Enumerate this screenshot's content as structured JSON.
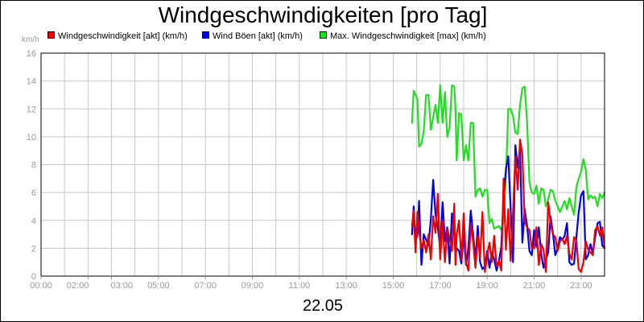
{
  "chart_data": {
    "type": "line",
    "title": "Windgeschwindigkeiten [pro Tag]",
    "date_label": "22.05",
    "unit_label": "km/h",
    "ylim": [
      0,
      16
    ],
    "y_ticks": [
      0,
      2,
      4,
      6,
      8,
      10,
      12,
      14,
      16
    ],
    "xlim": [
      0,
      24
    ],
    "x_ticks": [
      {
        "x": 0,
        "label": "00:00"
      },
      {
        "x": 2,
        "label": "02:00"
      },
      {
        "x": 3,
        "label": "03:00"
      },
      {
        "x": 5,
        "label": "05:00"
      },
      {
        "x": 7,
        "label": "07:00"
      },
      {
        "x": 9,
        "label": "09:00"
      },
      {
        "x": 11,
        "label": "11:00"
      },
      {
        "x": 13,
        "label": "13:00"
      },
      {
        "x": 15,
        "label": "15:00"
      },
      {
        "x": 17,
        "label": "17:00"
      },
      {
        "x": 19,
        "label": "19:00"
      },
      {
        "x": 21,
        "label": "21:00"
      },
      {
        "x": 23,
        "label": "23:00"
      }
    ],
    "x_grid": [
      0,
      1,
      2,
      3,
      4,
      5,
      6,
      7,
      8,
      9,
      10,
      11,
      12,
      13,
      14,
      15,
      16,
      17,
      18,
      19,
      20,
      21,
      22,
      23,
      24
    ],
    "grid": true,
    "legend_position": "top",
    "series": [
      {
        "name": "Max. Windgeschwindigkeit [max] (km/h)",
        "color": "#22dd22",
        "x": [
          15.8,
          15.87,
          15.95,
          16.03,
          16.1,
          16.2,
          16.3,
          16.4,
          16.5,
          16.6,
          16.7,
          16.8,
          16.9,
          17.0,
          17.1,
          17.2,
          17.3,
          17.4,
          17.5,
          17.6,
          17.65,
          17.7,
          17.8,
          17.9,
          18.0,
          18.1,
          18.2,
          18.3,
          18.4,
          18.5,
          18.6,
          18.7,
          18.8,
          18.9,
          19.0,
          19.1,
          19.2,
          19.3,
          19.4,
          19.5,
          19.6,
          19.7,
          19.8,
          19.9,
          20.0,
          20.1,
          20.2,
          20.3,
          20.4,
          20.5,
          20.6,
          20.7,
          20.8,
          20.9,
          21.0,
          21.1,
          21.2,
          21.3,
          21.4,
          21.5,
          21.6,
          21.7,
          21.8,
          21.9,
          22.0,
          22.1,
          22.2,
          22.3,
          22.4,
          22.5,
          22.6,
          22.7,
          22.8,
          22.9,
          23.0,
          23.1,
          23.2,
          23.3,
          23.4,
          23.5,
          23.6,
          23.7,
          23.8,
          23.9,
          24.0
        ],
        "values": [
          11.0,
          13.3,
          13.0,
          12.7,
          9.3,
          9.5,
          10.4,
          13.0,
          13.0,
          10.5,
          11.4,
          12.3,
          11.0,
          13.7,
          11.0,
          13.2,
          10.0,
          10.7,
          13.7,
          13.6,
          12.0,
          8.3,
          11.7,
          11.6,
          8.3,
          9.4,
          8.3,
          11.0,
          11.0,
          5.7,
          6.2,
          6.3,
          5.7,
          6.2,
          6.2,
          3.8,
          4.1,
          3.4,
          3.5,
          3.6,
          3.3,
          4.0,
          7.2,
          12.0,
          12.0,
          11.5,
          10.3,
          10.2,
          12.3,
          13.5,
          13.6,
          11.0,
          6.7,
          6.0,
          5.9,
          6.5,
          5.2,
          6.3,
          6.2,
          5.0,
          5.5,
          6.2,
          6.1,
          5.4,
          5.0,
          4.6,
          5.0,
          5.4,
          4.8,
          5.6,
          5.0,
          4.4,
          6.4,
          7.0,
          7.5,
          8.4,
          7.6,
          5.5,
          5.8,
          5.6,
          5.7,
          5.0,
          5.9,
          5.6,
          6.0
        ]
      },
      {
        "name": "Wind Böen [akt] (km/h)",
        "color": "#0000ee",
        "x": [
          15.8,
          15.87,
          15.95,
          16.03,
          16.1,
          16.2,
          16.3,
          16.4,
          16.5,
          16.6,
          16.7,
          16.8,
          16.9,
          17.0,
          17.1,
          17.2,
          17.3,
          17.4,
          17.5,
          17.6,
          17.65,
          17.7,
          17.8,
          17.9,
          18.0,
          18.1,
          18.2,
          18.3,
          18.4,
          18.5,
          18.6,
          18.7,
          18.8,
          18.9,
          19.0,
          19.1,
          19.2,
          19.3,
          19.4,
          19.5,
          19.6,
          19.7,
          19.8,
          19.9,
          20.0,
          20.1,
          20.2,
          20.3,
          20.4,
          20.5,
          20.6,
          20.7,
          20.8,
          20.9,
          21.0,
          21.1,
          21.2,
          21.3,
          21.4,
          21.5,
          21.6,
          21.7,
          21.8,
          21.9,
          22.0,
          22.1,
          22.2,
          22.3,
          22.4,
          22.5,
          22.6,
          22.7,
          22.8,
          22.9,
          23.0,
          23.1,
          23.2,
          23.3,
          23.4,
          23.5,
          23.6,
          23.7,
          23.8,
          23.9,
          24.0
        ],
        "values": [
          3.0,
          5.0,
          2.5,
          3.0,
          5.4,
          0.8,
          3.0,
          2.6,
          2.2,
          4.1,
          6.9,
          4.4,
          3.5,
          2.0,
          5.3,
          2.5,
          3.5,
          0.9,
          4.5,
          3.5,
          1.5,
          2.0,
          1.8,
          0.9,
          3.1,
          0.8,
          2.0,
          4.7,
          3.0,
          1.2,
          3.6,
          1.0,
          0.5,
          0.7,
          1.8,
          0.6,
          1.7,
          1.2,
          0.4,
          1.1,
          2.1,
          5.7,
          7.7,
          8.6,
          4.8,
          1.0,
          9.4,
          7.8,
          9.2,
          2.4,
          4.8,
          3.6,
          1.8,
          1.5,
          3.3,
          2.1,
          3.5,
          1.6,
          0.6,
          1.2,
          1.7,
          4.3,
          3.1,
          1.5,
          2.0,
          2.8,
          2.6,
          2.9,
          3.8,
          1.0,
          0.8,
          0.9,
          2.8,
          4.6,
          5.8,
          6.1,
          1.2,
          1.5,
          2.3,
          1.6,
          2.8,
          3.8,
          3.9,
          2.2,
          2.0
        ]
      },
      {
        "name": "Windgeschwindigkeit [akt] (km/h)",
        "color": "#ee0000",
        "x": [
          15.8,
          15.87,
          15.95,
          16.03,
          16.1,
          16.2,
          16.3,
          16.4,
          16.5,
          16.6,
          16.7,
          16.8,
          16.9,
          17.0,
          17.1,
          17.2,
          17.3,
          17.4,
          17.5,
          17.6,
          17.65,
          17.7,
          17.8,
          17.9,
          18.0,
          18.1,
          18.2,
          18.3,
          18.4,
          18.5,
          18.6,
          18.7,
          18.8,
          18.9,
          19.0,
          19.1,
          19.2,
          19.3,
          19.4,
          19.5,
          19.6,
          19.7,
          19.8,
          19.9,
          20.0,
          20.1,
          20.2,
          20.3,
          20.4,
          20.5,
          20.6,
          20.7,
          20.8,
          20.9,
          21.0,
          21.1,
          21.2,
          21.3,
          21.4,
          21.5,
          21.6,
          21.7,
          21.8,
          21.9,
          22.0,
          22.1,
          22.2,
          22.3,
          22.4,
          22.5,
          22.6,
          22.7,
          22.8,
          22.9,
          23.0,
          23.1,
          23.2,
          23.3,
          23.4,
          23.5,
          23.6,
          23.7,
          23.8,
          23.9,
          24.0
        ],
        "values": [
          3.6,
          4.7,
          1.7,
          4.6,
          3.2,
          2.0,
          2.6,
          1.7,
          3.0,
          1.2,
          4.3,
          3.1,
          5.9,
          1.2,
          4.0,
          1.0,
          3.4,
          2.7,
          1.8,
          5.2,
          0.8,
          3.0,
          4.0,
          1.2,
          4.5,
          1.0,
          0.4,
          3.7,
          2.5,
          0.6,
          2.9,
          1.3,
          4.6,
          0.3,
          1.5,
          2.4,
          1.0,
          2.9,
          0.7,
          1.1,
          0.4,
          7.0,
          1.9,
          4.8,
          1.1,
          4.6,
          8.6,
          6.2,
          9.8,
          8.7,
          3.9,
          3.5,
          3.3,
          2.0,
          2.0,
          3.5,
          0.8,
          2.3,
          1.9,
          0.3,
          5.3,
          3.8,
          3.0,
          2.8,
          1.8,
          2.5,
          2.7,
          2.3,
          2.9,
          1.6,
          1.2,
          2.8,
          2.5,
          0.5,
          0.3,
          1.0,
          2.5,
          1.9,
          1.7,
          1.5,
          3.3,
          3.6,
          2.9,
          3.5,
          2.0
        ]
      }
    ]
  },
  "legend": [
    {
      "label": "Windgeschwindigkeit [akt] (km/h)",
      "color": "#ee0000"
    },
    {
      "label": "Wind Böen [akt] (km/h)",
      "color": "#0000ee"
    },
    {
      "label": "Max. Windgeschwindigkeit [max] (km/h)",
      "color": "#22dd22"
    }
  ]
}
